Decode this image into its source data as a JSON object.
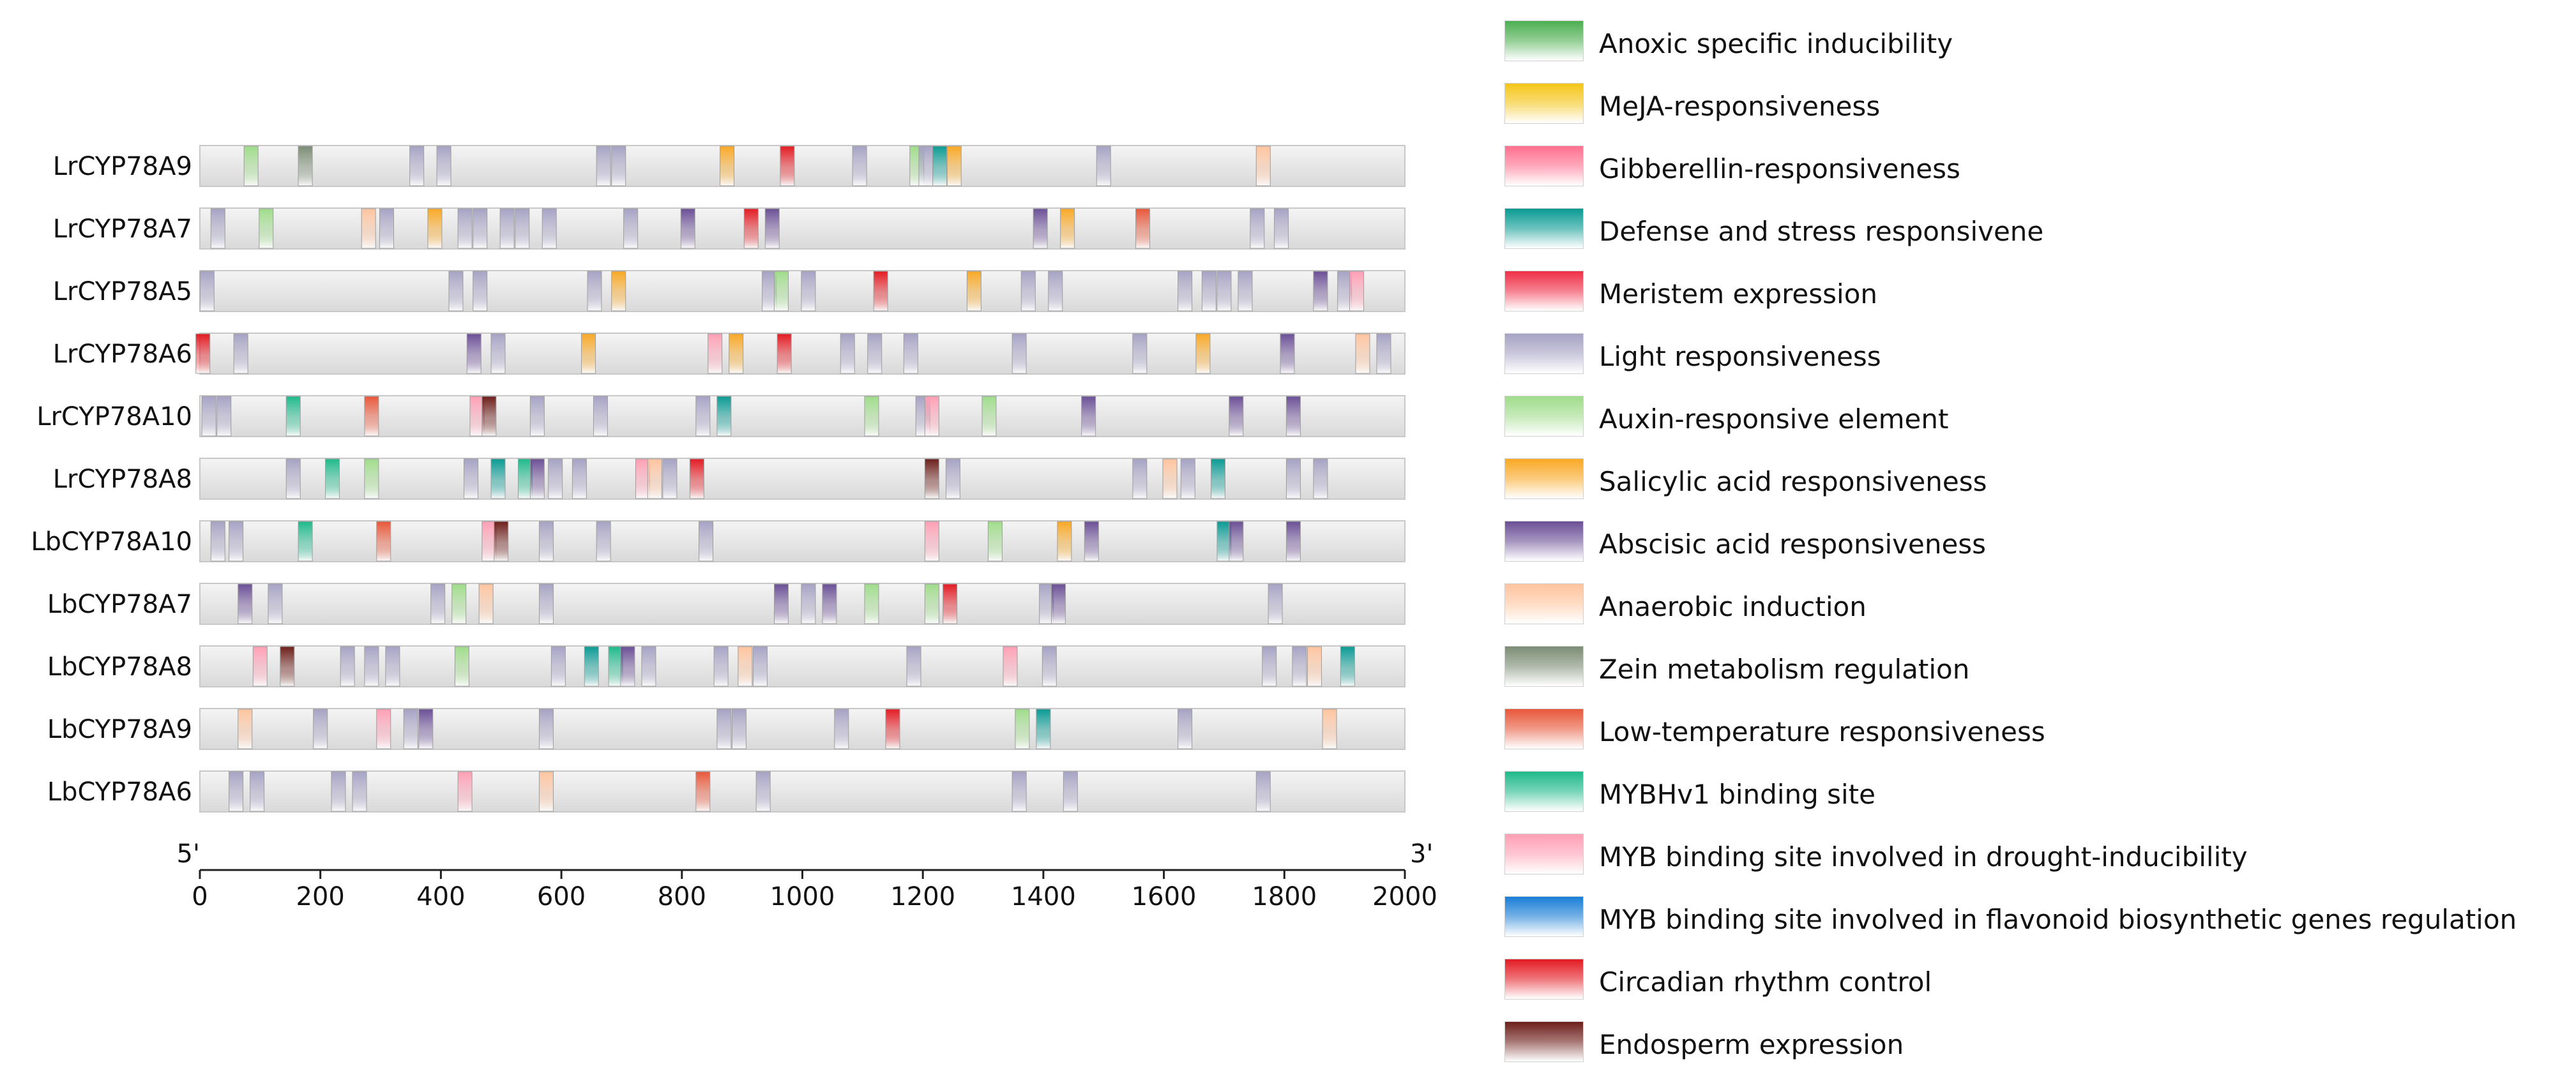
{
  "chart_data": {
    "type": "motif-map",
    "x_axis": {
      "min": 0,
      "max": 2000,
      "ticks": [
        0,
        200,
        400,
        600,
        800,
        1000,
        1200,
        1400,
        1600,
        1800,
        2000
      ],
      "start_label": "5'",
      "end_label": "3'"
    },
    "categories": [
      {
        "name": "Anoxic specific inducibility",
        "color": "#4caf50"
      },
      {
        "name": "MeJA-responsiveness",
        "color": "#f5c518"
      },
      {
        "name": "Gibberellin-responsiveness",
        "color": "#ff6f8e"
      },
      {
        "name": "Defense and stress responsivene",
        "color": "#0a9a93"
      },
      {
        "name": "Meristem expression",
        "color": "#ef2f47"
      },
      {
        "name": "Light responsiveness",
        "color": "#a6a2c4"
      },
      {
        "name": "Auxin-responsive element",
        "color": "#9fdc8a"
      },
      {
        "name": "Salicylic acid responsiveness",
        "color": "#f9a825"
      },
      {
        "name": "Abscisic acid responsiveness",
        "color": "#6b4f96"
      },
      {
        "name": "Anaerobic induction",
        "color": "#ffc49e"
      },
      {
        "name": "Zein metabolism regulation",
        "color": "#7b8c74"
      },
      {
        "name": "Low-temperature responsiveness",
        "color": "#e8573a"
      },
      {
        "name": "MYBHv1 binding site",
        "color": "#1fb98a"
      },
      {
        "name": "MYB binding site involved in drought-inducibility",
        "color": "#ff9fb4"
      },
      {
        "name": "MYB binding site involved in flavonoid biosynthetic genes regulation",
        "color": "#1a7ed6"
      },
      {
        "name": "Circadian rhythm control",
        "color": "#e31b23"
      },
      {
        "name": "Endosperm expression",
        "color": "#6d1f1a"
      }
    ],
    "genes": [
      {
        "name": "LrCYP78A9",
        "motifs": [
          [
            85,
            "Auxin-responsive element"
          ],
          [
            175,
            "Zein metabolism regulation"
          ],
          [
            360,
            "Light responsiveness"
          ],
          [
            405,
            "Light responsiveness"
          ],
          [
            670,
            "Light responsiveness"
          ],
          [
            695,
            "Light responsiveness"
          ],
          [
            875,
            "Salicylic acid responsiveness"
          ],
          [
            975,
            "Circadian rhythm control"
          ],
          [
            1095,
            "Light responsiveness"
          ],
          [
            1190,
            "Auxin-responsive element"
          ],
          [
            1205,
            "Light responsiveness"
          ],
          [
            1228,
            "Defense and stress responsivene"
          ],
          [
            1252,
            "Salicylic acid responsiveness"
          ],
          [
            1500,
            "Light responsiveness"
          ],
          [
            1765,
            "Anaerobic induction"
          ]
        ]
      },
      {
        "name": "LrCYP78A7",
        "motifs": [
          [
            30,
            "Light responsiveness"
          ],
          [
            110,
            "Auxin-responsive element"
          ],
          [
            280,
            "Anaerobic induction"
          ],
          [
            310,
            "Light responsiveness"
          ],
          [
            390,
            "Salicylic acid responsiveness"
          ],
          [
            440,
            "Light responsiveness"
          ],
          [
            465,
            "Light responsiveness"
          ],
          [
            510,
            "Light responsiveness"
          ],
          [
            535,
            "Light responsiveness"
          ],
          [
            580,
            "Light responsiveness"
          ],
          [
            715,
            "Light responsiveness"
          ],
          [
            810,
            "Abscisic acid responsiveness"
          ],
          [
            915,
            "Circadian rhythm control"
          ],
          [
            950,
            "Abscisic acid responsiveness"
          ],
          [
            1395,
            "Abscisic acid responsiveness"
          ],
          [
            1440,
            "Salicylic acid responsiveness"
          ],
          [
            1565,
            "Low-temperature responsiveness"
          ],
          [
            1755,
            "Light responsiveness"
          ],
          [
            1795,
            "Light responsiveness"
          ]
        ]
      },
      {
        "name": "LrCYP78A5",
        "motifs": [
          [
            12,
            "Light responsiveness"
          ],
          [
            425,
            "Light responsiveness"
          ],
          [
            465,
            "Light responsiveness"
          ],
          [
            655,
            "Light responsiveness"
          ],
          [
            695,
            "Salicylic acid responsiveness"
          ],
          [
            945,
            "Light responsiveness"
          ],
          [
            965,
            "Auxin-responsive element"
          ],
          [
            1010,
            "Light responsiveness"
          ],
          [
            1130,
            "Circadian rhythm control"
          ],
          [
            1285,
            "Salicylic acid responsiveness"
          ],
          [
            1375,
            "Light responsiveness"
          ],
          [
            1420,
            "Light responsiveness"
          ],
          [
            1635,
            "Light responsiveness"
          ],
          [
            1675,
            "Light responsiveness"
          ],
          [
            1700,
            "Light responsiveness"
          ],
          [
            1735,
            "Light responsiveness"
          ],
          [
            1860,
            "Abscisic acid responsiveness"
          ],
          [
            1900,
            "Light responsiveness"
          ],
          [
            1920,
            "MYB binding site involved in drought-inducibility"
          ]
        ]
      },
      {
        "name": "LrCYP78A6",
        "motifs": [
          [
            5,
            "Circadian rhythm control"
          ],
          [
            68,
            "Light responsiveness"
          ],
          [
            455,
            "Abscisic acid responsiveness"
          ],
          [
            495,
            "Light responsiveness"
          ],
          [
            645,
            "Salicylic acid responsiveness"
          ],
          [
            855,
            "MYB binding site involved in drought-inducibility"
          ],
          [
            890,
            "Salicylic acid responsiveness"
          ],
          [
            970,
            "Circadian rhythm control"
          ],
          [
            1075,
            "Light responsiveness"
          ],
          [
            1120,
            "Light responsiveness"
          ],
          [
            1180,
            "Light responsiveness"
          ],
          [
            1360,
            "Light responsiveness"
          ],
          [
            1560,
            "Light responsiveness"
          ],
          [
            1665,
            "Salicylic acid responsiveness"
          ],
          [
            1805,
            "Abscisic acid responsiveness"
          ],
          [
            1930,
            "Anaerobic induction"
          ],
          [
            1965,
            "Light responsiveness"
          ]
        ]
      },
      {
        "name": "LrCYP78A10",
        "motifs": [
          [
            15,
            "Light responsiveness"
          ],
          [
            40,
            "Light responsiveness"
          ],
          [
            155,
            "MYBHv1 binding site"
          ],
          [
            285,
            "Low-temperature responsiveness"
          ],
          [
            460,
            "MYB binding site involved in drought-inducibility"
          ],
          [
            480,
            "Endosperm expression"
          ],
          [
            560,
            "Light responsiveness"
          ],
          [
            665,
            "Light responsiveness"
          ],
          [
            835,
            "Light responsiveness"
          ],
          [
            870,
            "Defense and stress responsivene"
          ],
          [
            1115,
            "Auxin-responsive element"
          ],
          [
            1200,
            "Light responsiveness"
          ],
          [
            1215,
            "MYB binding site involved in drought-inducibility"
          ],
          [
            1310,
            "Auxin-responsive element"
          ],
          [
            1475,
            "Abscisic acid responsiveness"
          ],
          [
            1720,
            "Abscisic acid responsiveness"
          ],
          [
            1815,
            "Abscisic acid responsiveness"
          ]
        ]
      },
      {
        "name": "LrCYP78A8",
        "motifs": [
          [
            155,
            "Light responsiveness"
          ],
          [
            220,
            "MYBHv1 binding site"
          ],
          [
            285,
            "Auxin-responsive element"
          ],
          [
            450,
            "Light responsiveness"
          ],
          [
            495,
            "Defense and stress responsivene"
          ],
          [
            540,
            "MYBHv1 binding site"
          ],
          [
            560,
            "Abscisic acid responsiveness"
          ],
          [
            590,
            "Light responsiveness"
          ],
          [
            630,
            "Light responsiveness"
          ],
          [
            735,
            "MYB binding site involved in drought-inducibility"
          ],
          [
            755,
            "Anaerobic induction"
          ],
          [
            780,
            "Light responsiveness"
          ],
          [
            825,
            "Circadian rhythm control"
          ],
          [
            1215,
            "Endosperm expression"
          ],
          [
            1250,
            "Light responsiveness"
          ],
          [
            1560,
            "Light responsiveness"
          ],
          [
            1610,
            "Anaerobic induction"
          ],
          [
            1640,
            "Light responsiveness"
          ],
          [
            1690,
            "Defense and stress responsivene"
          ],
          [
            1815,
            "Light responsiveness"
          ],
          [
            1860,
            "Light responsiveness"
          ]
        ]
      },
      {
        "name": "LbCYP78A10",
        "motifs": [
          [
            30,
            "Light responsiveness"
          ],
          [
            60,
            "Light responsiveness"
          ],
          [
            175,
            "MYBHv1 binding site"
          ],
          [
            305,
            "Low-temperature responsiveness"
          ],
          [
            480,
            "MYB binding site involved in drought-inducibility"
          ],
          [
            500,
            "Endosperm expression"
          ],
          [
            575,
            "Light responsiveness"
          ],
          [
            670,
            "Light responsiveness"
          ],
          [
            840,
            "Light responsiveness"
          ],
          [
            1215,
            "MYB binding site involved in drought-inducibility"
          ],
          [
            1320,
            "Auxin-responsive element"
          ],
          [
            1435,
            "Salicylic acid responsiveness"
          ],
          [
            1480,
            "Abscisic acid responsiveness"
          ],
          [
            1700,
            "Defense and stress responsivene"
          ],
          [
            1720,
            "Abscisic acid responsiveness"
          ],
          [
            1815,
            "Abscisic acid responsiveness"
          ]
        ]
      },
      {
        "name": "LbCYP78A7",
        "motifs": [
          [
            75,
            "Abscisic acid responsiveness"
          ],
          [
            125,
            "Light responsiveness"
          ],
          [
            395,
            "Light responsiveness"
          ],
          [
            430,
            "Auxin-responsive element"
          ],
          [
            475,
            "Anaerobic induction"
          ],
          [
            575,
            "Light responsiveness"
          ],
          [
            965,
            "Abscisic acid responsiveness"
          ],
          [
            1010,
            "Light responsiveness"
          ],
          [
            1045,
            "Abscisic acid responsiveness"
          ],
          [
            1115,
            "Auxin-responsive element"
          ],
          [
            1215,
            "Auxin-responsive element"
          ],
          [
            1245,
            "Circadian rhythm control"
          ],
          [
            1405,
            "Light responsiveness"
          ],
          [
            1425,
            "Abscisic acid responsiveness"
          ],
          [
            1785,
            "Light responsiveness"
          ]
        ]
      },
      {
        "name": "LbCYP78A8",
        "motifs": [
          [
            100,
            "MYB binding site involved in drought-inducibility"
          ],
          [
            145,
            "Endosperm expression"
          ],
          [
            245,
            "Light responsiveness"
          ],
          [
            285,
            "Light responsiveness"
          ],
          [
            320,
            "Light responsiveness"
          ],
          [
            435,
            "Auxin-responsive element"
          ],
          [
            595,
            "Light responsiveness"
          ],
          [
            650,
            "Defense and stress responsivene"
          ],
          [
            690,
            "MYBHv1 binding site"
          ],
          [
            710,
            "Abscisic acid responsiveness"
          ],
          [
            745,
            "Light responsiveness"
          ],
          [
            865,
            "Light responsiveness"
          ],
          [
            905,
            "Anaerobic induction"
          ],
          [
            930,
            "Light responsiveness"
          ],
          [
            1185,
            "Light responsiveness"
          ],
          [
            1345,
            "MYB binding site involved in drought-inducibility"
          ],
          [
            1410,
            "Light responsiveness"
          ],
          [
            1775,
            "Light responsiveness"
          ],
          [
            1825,
            "Light responsiveness"
          ],
          [
            1850,
            "Anaerobic induction"
          ],
          [
            1905,
            "Defense and stress responsivene"
          ]
        ]
      },
      {
        "name": "LbCYP78A9",
        "motifs": [
          [
            75,
            "Anaerobic induction"
          ],
          [
            200,
            "Light responsiveness"
          ],
          [
            305,
            "MYB binding site involved in drought-inducibility"
          ],
          [
            350,
            "Light responsiveness"
          ],
          [
            375,
            "Abscisic acid responsiveness"
          ],
          [
            575,
            "Light responsiveness"
          ],
          [
            870,
            "Light responsiveness"
          ],
          [
            895,
            "Light responsiveness"
          ],
          [
            1065,
            "Light responsiveness"
          ],
          [
            1150,
            "Circadian rhythm control"
          ],
          [
            1365,
            "Auxin-responsive element"
          ],
          [
            1400,
            "Defense and stress responsivene"
          ],
          [
            1635,
            "Light responsiveness"
          ],
          [
            1875,
            "Anaerobic induction"
          ]
        ]
      },
      {
        "name": "LbCYP78A6",
        "motifs": [
          [
            60,
            "Light responsiveness"
          ],
          [
            95,
            "Light responsiveness"
          ],
          [
            230,
            "Light responsiveness"
          ],
          [
            265,
            "Light responsiveness"
          ],
          [
            440,
            "MYB binding site involved in drought-inducibility"
          ],
          [
            575,
            "Anaerobic induction"
          ],
          [
            835,
            "Low-temperature responsiveness"
          ],
          [
            935,
            "Light responsiveness"
          ],
          [
            1360,
            "Light responsiveness"
          ],
          [
            1445,
            "Light responsiveness"
          ],
          [
            1765,
            "Light responsiveness"
          ]
        ]
      }
    ]
  }
}
